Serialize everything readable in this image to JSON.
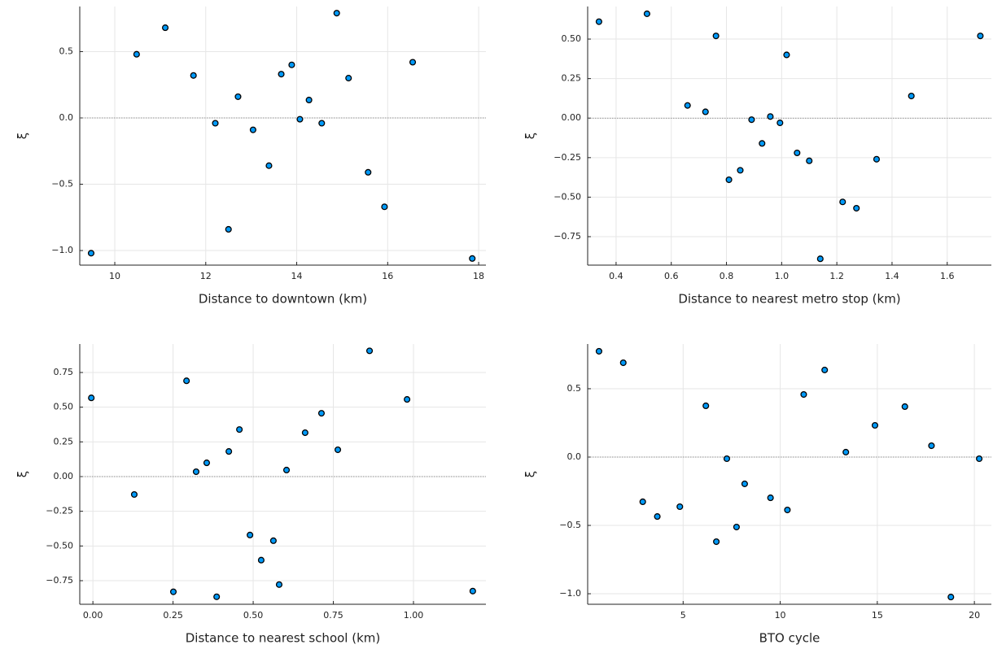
{
  "chart_data": [
    {
      "type": "scatter",
      "x_label": "Distance to downtown (km)",
      "y_label": "ξ",
      "color": "#009af9",
      "grid": true,
      "hline": 0,
      "x": [
        9.48,
        10.48,
        11.11,
        11.73,
        12.21,
        12.5,
        12.71,
        13.04,
        13.39,
        13.66,
        13.89,
        14.07,
        14.27,
        14.55,
        14.88,
        15.14,
        15.57,
        15.93,
        16.55,
        17.86
      ],
      "y": [
        -1.02,
        0.48,
        0.68,
        0.32,
        -0.04,
        -0.84,
        0.16,
        -0.09,
        -0.36,
        0.33,
        0.4,
        -0.01,
        0.135,
        -0.04,
        0.79,
        0.3,
        -0.41,
        -0.67,
        0.42,
        -1.06
      ],
      "xlim": [
        9.23,
        18.16
      ],
      "ylim": [
        -1.11,
        0.84
      ],
      "xticks": [
        10,
        12,
        14,
        16,
        18
      ],
      "yticks": [
        0.5,
        {
          "value": 0,
          "label": "0.0"
        },
        {
          "value": -0.5,
          "label": "−0.5"
        },
        {
          "value": -1,
          "label": "−1.0"
        }
      ]
    },
    {
      "type": "scatter",
      "x_label": "Distance to nearest metro stop (km)",
      "y_label": "ξ",
      "color": "#009af9",
      "grid": true,
      "hline": 0,
      "x": [
        0.338,
        0.512,
        0.762,
        0.659,
        0.724,
        1.018,
        0.891,
        0.959,
        0.994,
        0.929,
        1.056,
        0.85,
        0.809,
        1.1,
        1.221,
        1.271,
        1.344,
        1.47,
        1.72,
        1.14
      ],
      "y": [
        0.61,
        0.66,
        0.52,
        0.08,
        0.04,
        0.4,
        -0.01,
        0.01,
        -0.03,
        -0.16,
        -0.22,
        -0.33,
        -0.39,
        -0.27,
        -0.53,
        -0.57,
        -0.26,
        0.14,
        0.52,
        -0.89
      ],
      "xlim": [
        0.297,
        1.76
      ],
      "ylim": [
        -0.93,
        0.706
      ],
      "xticks": [
        0.4,
        0.6,
        0.8,
        {
          "value": 1,
          "label": "1.0"
        },
        1.2,
        1.4,
        1.6
      ],
      "yticks": [
        {
          "value": 0.5,
          "label": "0.50"
        },
        0.25,
        {
          "value": 0,
          "label": "0.00"
        },
        {
          "value": -0.25,
          "label": "−0.25"
        },
        {
          "value": -0.5,
          "label": "−0.50"
        },
        {
          "value": -0.75,
          "label": "−0.75"
        }
      ]
    },
    {
      "type": "scatter",
      "x_label": "Distance to nearest school (km)",
      "y_label": "ξ",
      "color": "#009af9",
      "grid": true,
      "hline": 0,
      "x": [
        -0.005,
        0.129,
        0.251,
        0.292,
        0.322,
        0.355,
        0.386,
        0.424,
        0.457,
        0.49,
        0.525,
        0.563,
        0.581,
        0.604,
        0.662,
        0.713,
        0.764,
        0.863,
        0.98,
        1.185
      ],
      "y": [
        0.567,
        -0.129,
        -0.83,
        0.69,
        0.035,
        0.099,
        -0.866,
        0.181,
        0.339,
        -0.421,
        -0.602,
        -0.462,
        -0.778,
        0.047,
        0.316,
        0.456,
        0.193,
        0.906,
        0.556,
        -0.825
      ],
      "xlim": [
        -0.041,
        1.226
      ],
      "ylim": [
        -0.92,
        0.955
      ],
      "xticks": [
        {
          "value": 0,
          "label": "0.00"
        },
        0.25,
        {
          "value": 0.5,
          "label": "0.50"
        },
        0.75,
        {
          "value": 1,
          "label": "1.00"
        }
      ],
      "yticks": [
        0.75,
        {
          "value": 0.5,
          "label": "0.50"
        },
        0.25,
        {
          "value": 0,
          "label": "0.00"
        },
        {
          "value": -0.25,
          "label": "−0.25"
        },
        {
          "value": -0.5,
          "label": "−0.50"
        },
        {
          "value": -0.75,
          "label": "−0.75"
        }
      ]
    },
    {
      "type": "scatter",
      "x_label": "BTO cycle",
      "y_label": "ξ",
      "color": "#009af9",
      "grid": true,
      "hline": 0,
      "x": [
        0.667,
        1.917,
        2.92,
        3.67,
        4.83,
        6.17,
        6.71,
        7.25,
        7.75,
        8.17,
        9.5,
        10.37,
        11.21,
        12.29,
        13.38,
        14.88,
        16.42,
        17.79,
        18.79,
        20.25
      ],
      "y": [
        0.774,
        0.69,
        -0.327,
        -0.435,
        -0.363,
        0.375,
        -0.619,
        -0.012,
        -0.512,
        -0.196,
        -0.298,
        -0.387,
        0.458,
        0.637,
        0.036,
        0.232,
        0.369,
        0.083,
        -1.024,
        -0.012
      ],
      "xlim": [
        0.083,
        20.875
      ],
      "ylim": [
        -1.077,
        0.827
      ],
      "xticks": [
        5,
        10,
        15,
        20
      ],
      "yticks": [
        0.5,
        {
          "value": 0,
          "label": "0.0"
        },
        {
          "value": -0.5,
          "label": "−0.5"
        },
        {
          "value": -1,
          "label": "−1.0"
        }
      ]
    }
  ]
}
